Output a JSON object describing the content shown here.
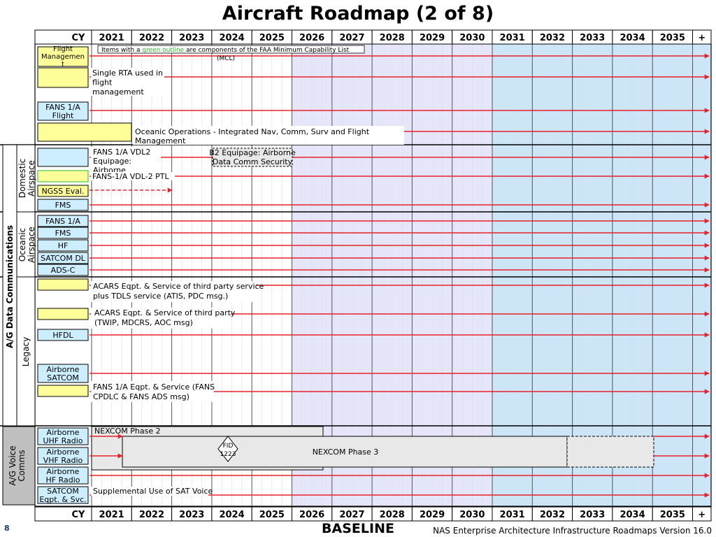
{
  "title": "Aircraft Roadmap (2 of 8)",
  "timeline": {
    "cy_label": "CY",
    "years": [
      "2021",
      "2022",
      "2023",
      "2024",
      "2025",
      "2026",
      "2027",
      "2028",
      "2029",
      "2030",
      "2031",
      "2032",
      "2033",
      "2034",
      "2035",
      "+"
    ]
  },
  "legend_note": {
    "before": "Items with a ",
    "green": "green outline",
    "after": " are components of the FAA Minimum Capability List",
    "line2": "(MCL)"
  },
  "groups": {
    "data_comm": "A/G Data Communications",
    "domestic": [
      "Domestic",
      "Airspace"
    ],
    "oceanic": [
      "Oceanic",
      "Airspace"
    ],
    "legacy": "Legacy",
    "voice": [
      "A/G Voice",
      "Comms"
    ]
  },
  "rows": {
    "flight_mgmt": [
      "Flight",
      "Managemen",
      "t"
    ],
    "fans_flight": [
      "FANS 1/A",
      "Flight"
    ],
    "ngss": "NGSS Eval.",
    "fms_dom": "FMS",
    "fans_oce": "FANS 1/A",
    "fms_oce": "FMS",
    "hf": "HF",
    "satcom_dl": "SATCOM DL",
    "adsc": "ADS-C",
    "hfdl": "HFDL",
    "airborne_satcom": [
      "Airborne",
      "SATCOM"
    ],
    "uhf": [
      "Airborne",
      "UHF Radio"
    ],
    "vhf": [
      "Airborne",
      "VHF Radio"
    ],
    "hf_radio": [
      "Airborne",
      "HF Radio"
    ],
    "satcom_eqpt": [
      "SATCOM",
      "Eqpt. & Svc."
    ]
  },
  "annotations": {
    "single_rta": [
      "Single RTA used in",
      "flight",
      "management"
    ],
    "oceanic_ops": [
      "Oceanic Operations - Integrated Nav, Comm, Surv and Flight",
      "Management"
    ],
    "fans_vdl2": [
      "FANS 1/A VDL2",
      "Equipage:",
      "Airborne"
    ],
    "b2": [
      "B2 Equipage: Airborne",
      "Data Comm Security"
    ],
    "fans_ptl": "FANS-1/A VDL-2 PTL",
    "acars1": [
      "ACARS Eqpt. & Service of third party service",
      "plus TDLS service (ATIS, PDC msg.)"
    ],
    "acars2": [
      "ACARS Eqpt. & Service of third party",
      "(TWIP, MDCRS, AOC msg)"
    ],
    "fans_eqpt": [
      "FANS 1/A Eqpt. & Service (FANS",
      "CPDLC & FANS ADS msg)"
    ],
    "nexcom2": "NEXCOM Phase 2",
    "nexcom3": "NEXCOM Phase 3",
    "fid": [
      "FID",
      "1223"
    ],
    "sat_voice": "Supplemental Use of SAT Voice"
  },
  "footer": {
    "page": "8",
    "baseline": "BASELINE",
    "version": "NAS Enterprise Architecture Infrastructure Roadmaps Version 16.0"
  },
  "colors": {
    "arrow": "#e8202a",
    "yellow_box": "#ffff99",
    "blue_box": "#cceeff",
    "band_lavender": "#e6e6fa",
    "band_blue": "#cce5f7",
    "group_gray": "#bfbfbf",
    "green_outline": "#2eb82e"
  }
}
